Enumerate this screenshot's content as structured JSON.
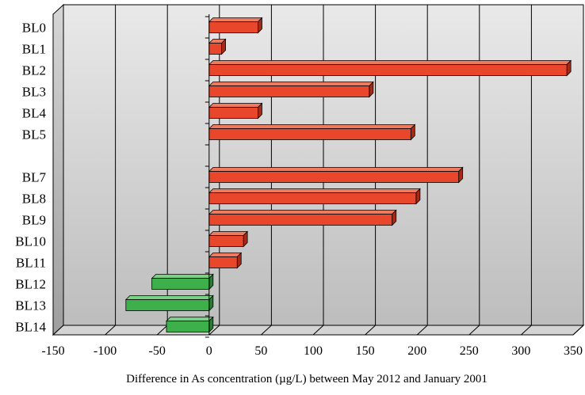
{
  "chart_data": {
    "type": "bar",
    "orientation": "horizontal",
    "style": "3d",
    "categories": [
      "BL0",
      "BL1",
      "BL2",
      "BL3",
      "BL4",
      "BL5",
      "",
      "BL7",
      "BL8",
      "BL9",
      "BL10",
      "BL11",
      "BL12",
      "BL13",
      "BL14"
    ],
    "values": [
      47,
      12,
      344,
      154,
      47,
      194,
      null,
      240,
      199,
      176,
      33,
      27,
      -55,
      -80,
      -41
    ],
    "xlabel": "Difference in As concentration (µg/L) between May 2012 and January 2001",
    "ylabel": "",
    "title": "",
    "xlim": [
      -150,
      350
    ],
    "xticks": [
      -150,
      -100,
      -50,
      0,
      50,
      100,
      150,
      200,
      250,
      300,
      350
    ],
    "xtick_labels": [
      "-150",
      "-100",
      "-50",
      "0",
      "50",
      "100",
      "150",
      "200",
      "250",
      "300",
      "350"
    ],
    "grid": "vertical",
    "colors": {
      "positive": "#e8472b",
      "positive_top": "#f07a5e",
      "positive_side": "#a82a14",
      "negative": "#3db04b",
      "negative_top": "#7ad083",
      "negative_side": "#22802e",
      "wall_top": "#e9e9e9",
      "wall_bottom": "#bdbdbd",
      "gridline": "#000000"
    }
  }
}
